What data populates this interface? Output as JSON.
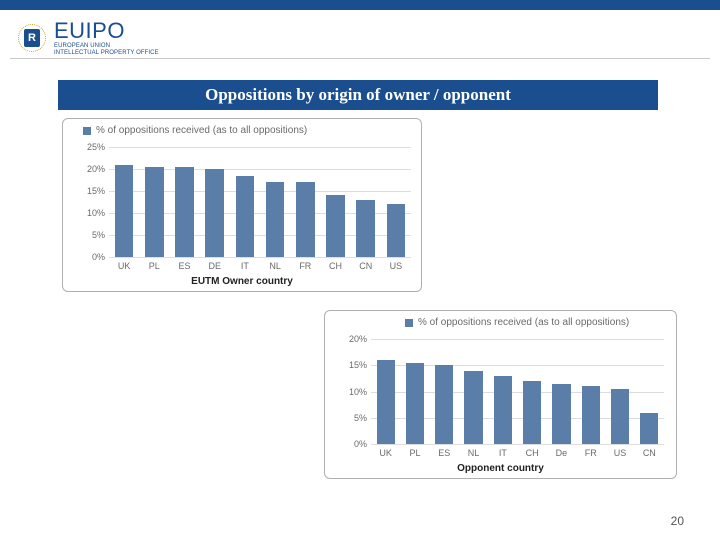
{
  "logo": {
    "mark": "R",
    "name": "EUIPO",
    "sub1": "EUROPEAN UNION",
    "sub2": "INTELLECTUAL PROPERTY OFFICE"
  },
  "title": "Oppositions by origin of owner / opponent",
  "page_number": "20",
  "brand_blue": "#1a4e8f",
  "bar_color": "#5a7ea8",
  "grid_color": "#dddddd",
  "panel_border": "#b0b0b0",
  "chart1": {
    "type": "bar",
    "legend": "% of oppositions received (as to all oppositions)",
    "x_title": "EUTM Owner country",
    "ymax": 25,
    "ytick_step": 5,
    "categories": [
      "UK",
      "PL",
      "ES",
      "DE",
      "IT",
      "NL",
      "FR",
      "CH",
      "CN",
      "US"
    ],
    "values": [
      21,
      20.5,
      20.5,
      20,
      18.5,
      17,
      17,
      14,
      13,
      12
    ]
  },
  "chart2": {
    "type": "bar",
    "legend": "% of oppositions received (as to all oppositions)",
    "x_title": "Opponent country",
    "ymax": 20,
    "ytick_step": 5,
    "categories": [
      "UK",
      "PL",
      "ES",
      "NL",
      "IT",
      "CH",
      "De",
      "FR",
      "US",
      "CN"
    ],
    "values": [
      16,
      15.5,
      15,
      14,
      13,
      12,
      11.5,
      11,
      10.5,
      6
    ]
  }
}
